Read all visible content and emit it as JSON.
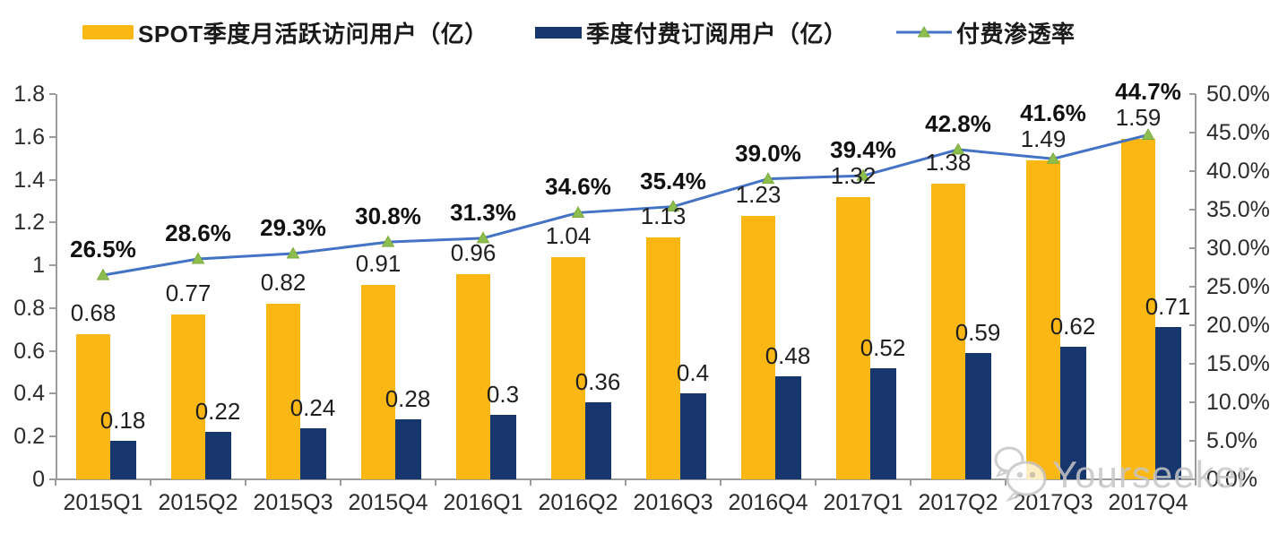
{
  "chart_data": {
    "type": "bar",
    "subtype": "combo-bar-line-dual-axis",
    "categories": [
      "2015Q1",
      "2015Q2",
      "2015Q3",
      "2015Q4",
      "2016Q1",
      "2016Q2",
      "2016Q3",
      "2016Q4",
      "2017Q1",
      "2017Q2",
      "2017Q3",
      "2017Q4"
    ],
    "series": [
      {
        "name": "SPOT季度月活跃访问用户（亿）",
        "type": "bar",
        "axis": "left",
        "color": "#FBB713",
        "values": [
          0.68,
          0.77,
          0.82,
          0.91,
          0.96,
          1.04,
          1.13,
          1.23,
          1.32,
          1.38,
          1.49,
          1.59
        ],
        "labels": [
          "0.68",
          "0.77",
          "0.82",
          "0.91",
          "0.96",
          "1.04",
          "1.13",
          "1.23",
          "1.32",
          "1.38",
          "1.49",
          "1.59"
        ]
      },
      {
        "name": "季度付费订阅用户（亿）",
        "type": "bar",
        "axis": "left",
        "color": "#17366D",
        "values": [
          0.18,
          0.22,
          0.24,
          0.28,
          0.3,
          0.36,
          0.4,
          0.48,
          0.52,
          0.59,
          0.62,
          0.71
        ],
        "labels": [
          "0.18",
          "0.22",
          "0.24",
          "0.28",
          "0.3",
          "0.36",
          "0.4",
          "0.48",
          "0.52",
          "0.59",
          "0.62",
          "0.71"
        ]
      },
      {
        "name": "付费渗透率",
        "type": "line",
        "axis": "right",
        "color": "#4472C4",
        "marker": "triangle",
        "marker_color": "#8CBE4F",
        "values": [
          26.5,
          28.6,
          29.3,
          30.8,
          31.3,
          34.6,
          35.4,
          39.0,
          39.4,
          42.8,
          41.6,
          44.7
        ],
        "labels": [
          "26.5%",
          "28.6%",
          "29.3%",
          "30.8%",
          "31.3%",
          "34.6%",
          "35.4%",
          "39.0%",
          "39.4%",
          "42.8%",
          "41.6%",
          "44.7%"
        ]
      }
    ],
    "left_axis": {
      "min": 0,
      "max": 1.8,
      "tick_labels": [
        "1.8",
        "1.6",
        "1.4",
        "1.2",
        "1",
        "0.8",
        "0.6",
        "0.4",
        "0.2",
        "0"
      ]
    },
    "right_axis": {
      "min": 0,
      "max": 50,
      "tick_labels": [
        "50.0%",
        "45.0%",
        "40.0%",
        "35.0%",
        "30.0%",
        "25.0%",
        "20.0%",
        "15.0%",
        "10.0%",
        "5.0%",
        "0.0%"
      ]
    },
    "grid": false,
    "legend_position": "top"
  },
  "watermark": {
    "text": "Yourseeker",
    "icon": "wechat-icon"
  },
  "colors": {
    "bar_mau": "#FBB713",
    "bar_sub": "#17366D",
    "line": "#4472C4",
    "marker_fill": "#8CBE4F",
    "marker_edge": "#7DAB3E",
    "axis": "#9B9B9B",
    "text": "#2B2B2B",
    "watermark": "#C6C6C6"
  }
}
